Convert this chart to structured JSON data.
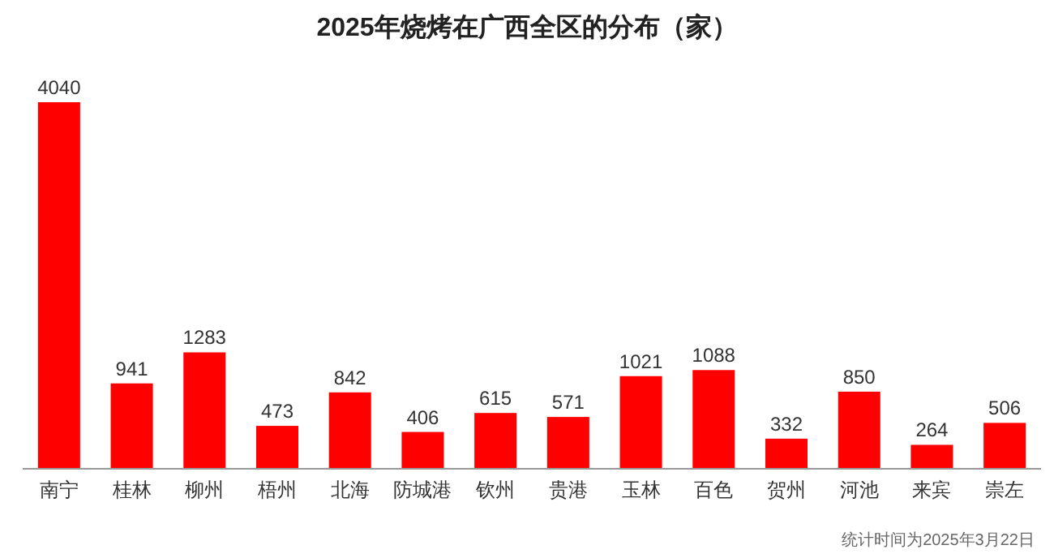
{
  "chart_data": {
    "type": "bar",
    "title": "2025年烧烤在广西全区的分布（家）",
    "categories": [
      "南宁",
      "桂林",
      "柳州",
      "梧州",
      "北海",
      "防城港",
      "钦州",
      "贵港",
      "玉林",
      "百色",
      "贺州",
      "河池",
      "来宾",
      "崇左"
    ],
    "values": [
      4040,
      941,
      1283,
      473,
      842,
      406,
      615,
      571,
      1021,
      1088,
      332,
      850,
      264,
      506
    ],
    "color": "#ff0000",
    "data_labels": true,
    "annotations": [
      "统计时间为2025年3月22日"
    ]
  }
}
